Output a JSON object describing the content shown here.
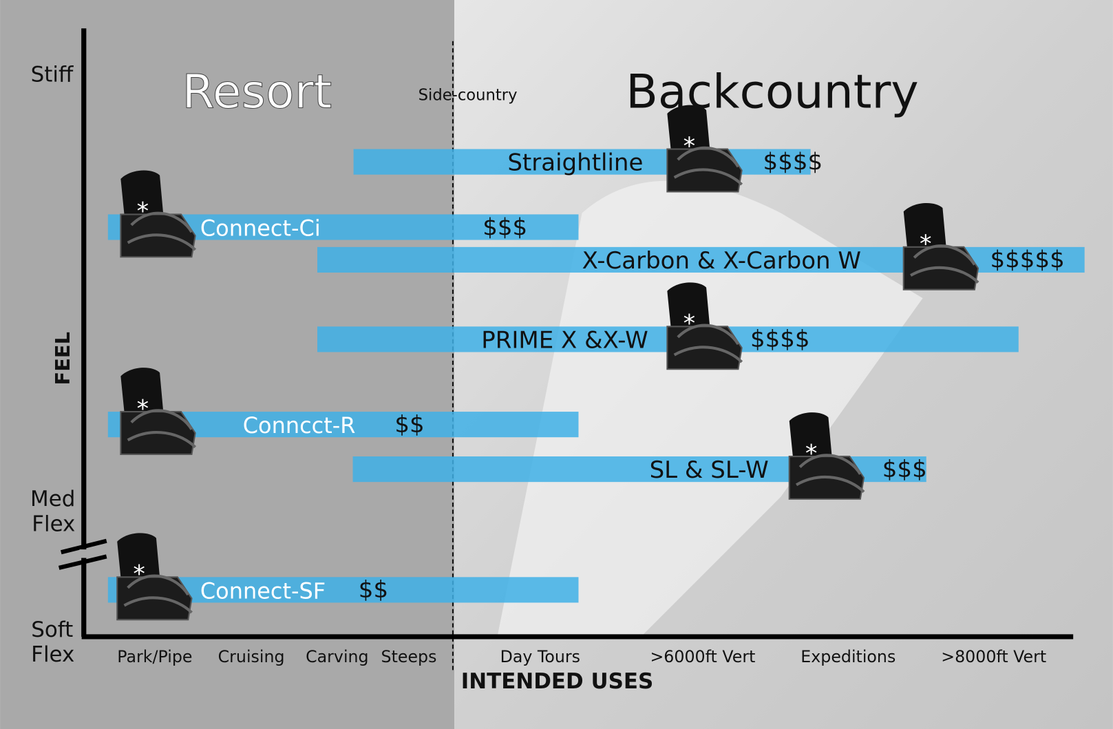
{
  "zones": {
    "resort": "Resort",
    "sidecountry": "Side-country",
    "backcountry": "Backcountry"
  },
  "y_axis": {
    "title": "FEEL",
    "stiff": "Stiff",
    "med": [
      "Med",
      "Flex"
    ],
    "soft": [
      "Soft",
      "Flex"
    ]
  },
  "x_axis": {
    "title": "INTENDED USES",
    "labels": [
      "Park/Pipe",
      "Cruising",
      "Carving",
      "Steeps",
      "Day Tours",
      ">6000ft Vert",
      "Expeditions",
      ">8000ft Vert"
    ]
  },
  "products": [
    {
      "name": "Straightline",
      "price": "$$$$"
    },
    {
      "name": "Connect-Ci",
      "price": "$$$"
    },
    {
      "name": "X-Carbon & X-Carbon W",
      "price": "$$$$$"
    },
    {
      "name": "PRIME X &X-W",
      "price": "$$$$"
    },
    {
      "name": "Conncct-R",
      "price": "$$"
    },
    {
      "name": "SL & SL-W",
      "price": "$$$"
    },
    {
      "name": "Connect-SF",
      "price": "$$"
    }
  ]
}
